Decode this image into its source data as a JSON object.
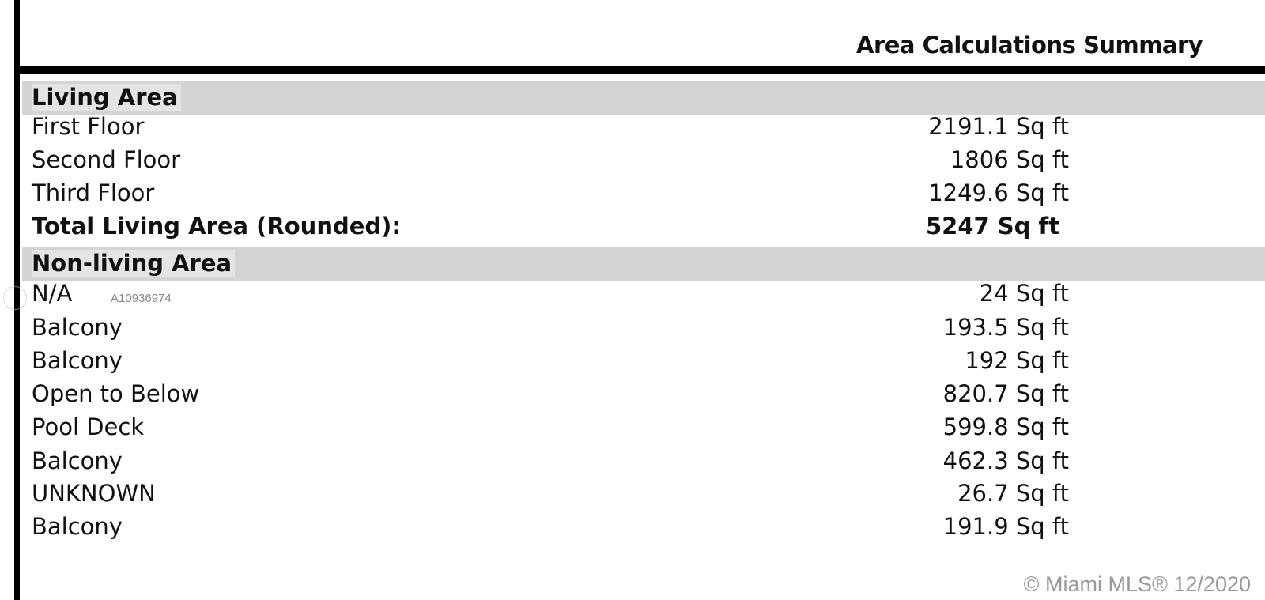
{
  "title": "Area Calculations Summary",
  "living_area": {
    "heading": "Living Area",
    "rows": [
      {
        "label": "First Floor",
        "value": "2191.1 Sq ft"
      },
      {
        "label": "Second Floor",
        "value": "1806 Sq ft"
      },
      {
        "label": "Third Floor",
        "value": "1249.6 Sq ft"
      }
    ],
    "total": {
      "label": "Total Living Area (Rounded):",
      "value": "5247 Sq ft"
    }
  },
  "non_living_area": {
    "heading": "Non-living Area",
    "rows": [
      {
        "label": "N/A",
        "value": "24 Sq ft"
      },
      {
        "label": "Balcony",
        "value": "193.5 Sq ft"
      },
      {
        "label": "Balcony",
        "value": "192 Sq ft"
      },
      {
        "label": "Open to Below",
        "value": "820.7 Sq ft"
      },
      {
        "label": "Pool Deck",
        "value": "599.8 Sq ft"
      },
      {
        "label": "Balcony",
        "value": "462.3 Sq ft"
      },
      {
        "label": "UNKNOWN",
        "value": "26.7 Sq ft"
      },
      {
        "label": "Balcony",
        "value": "191.9 Sq ft"
      }
    ]
  },
  "watermark": "A10936974",
  "copyright": "© Miami MLS® 12/2020"
}
